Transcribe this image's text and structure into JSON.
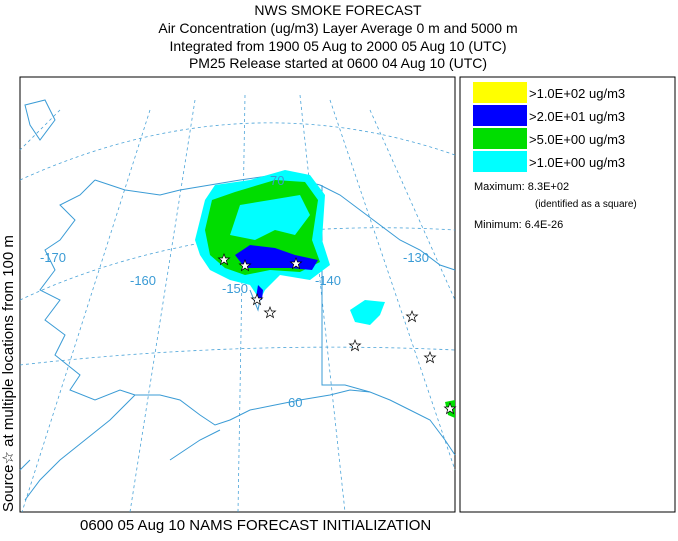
{
  "header": {
    "title": "NWS SMOKE FORECAST",
    "lines": [
      "Air Concentration (ug/m3) Layer Average    0 m and  5000 m",
      "Integrated from 1900 05 Aug to 2000 05 Aug 10 (UTC)",
      "PM25 Release started at 0600 04 Aug 10 (UTC)"
    ]
  },
  "side_label": "Source☆ at multiple locations  from   100 m",
  "footer": "0600 05 Aug 10 NAMS FORECAST INITIALIZATION",
  "map": {
    "labels": [
      "-170",
      "-160",
      "-150",
      "-140",
      "-130",
      "70",
      "60"
    ]
  },
  "legend": {
    "items": [
      {
        "label": ">1.0E+02 ug/m3",
        "color": "#ffff00"
      },
      {
        "label": ">2.0E+01 ug/m3",
        "color": "#0000ff"
      },
      {
        "label": ">5.0E+00 ug/m3",
        "color": "#00dd00"
      },
      {
        "label": ">1.0E+00 ug/m3",
        "color": "#00ffff"
      }
    ],
    "maximum": "Maximum: 8.3E+02",
    "max_note": "(identified as a square)",
    "minimum": "Minimum: 6.4E-26"
  }
}
